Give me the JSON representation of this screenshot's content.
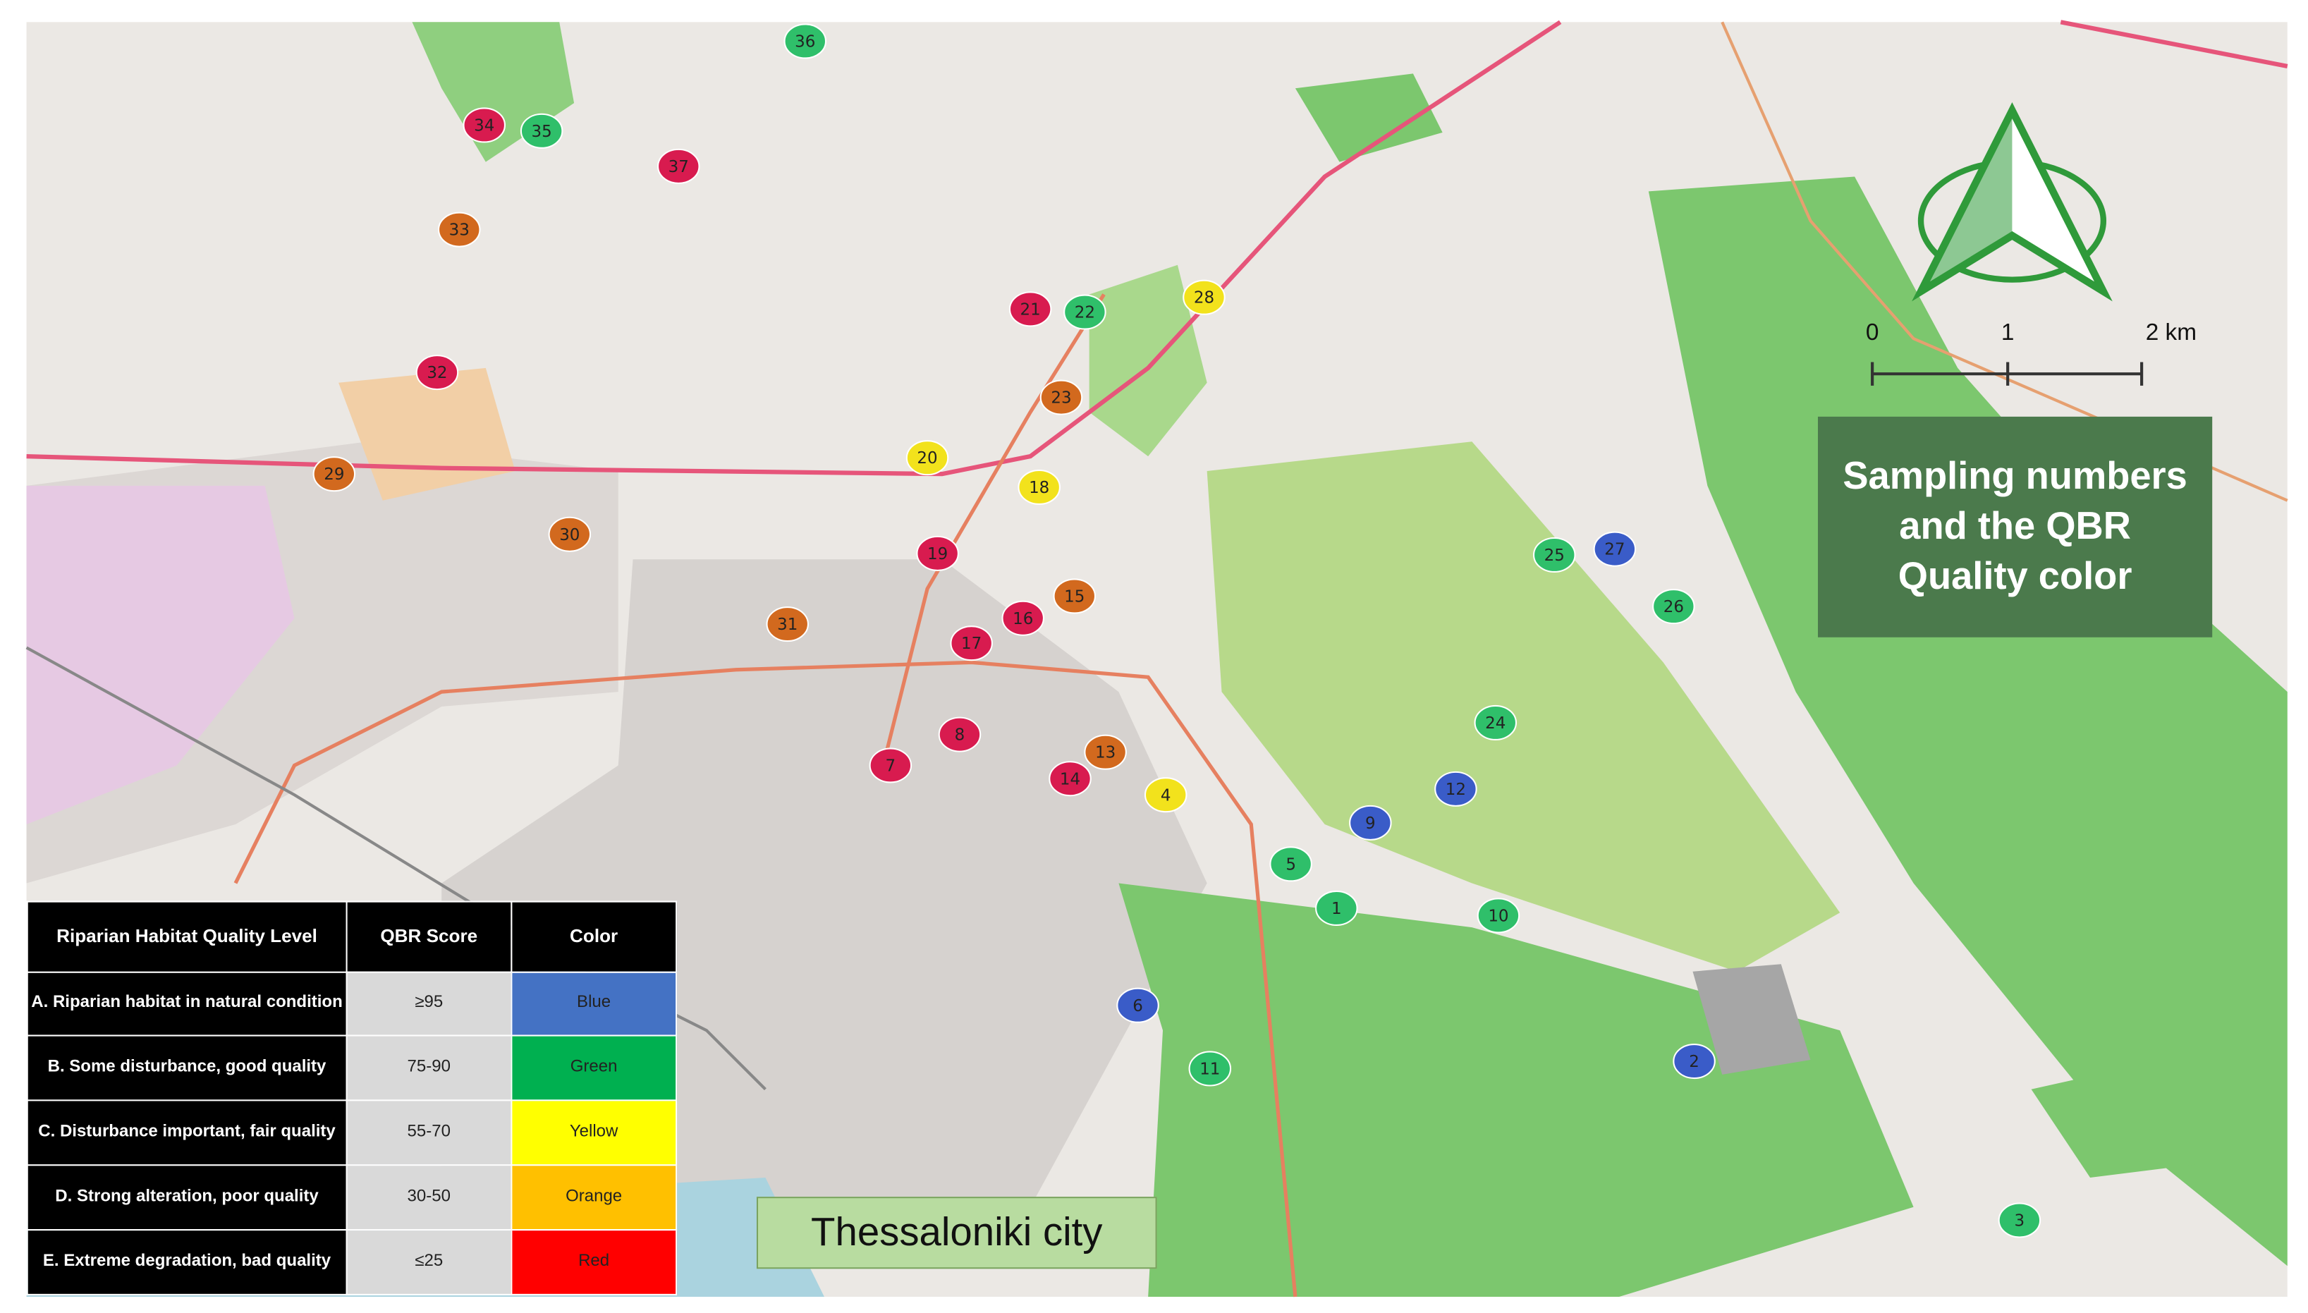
{
  "map": {
    "title": "Sampling numbers and the QBR Quality color",
    "place_label": "Thessaloniki city",
    "scale_bar": [
      "0",
      "1",
      "2 km"
    ],
    "sites": [
      {
        "label": "36",
        "color": "#2fbf6a"
      },
      {
        "label": "34",
        "color": "#d81b4f"
      },
      {
        "label": "35",
        "color": "#2fbf6a"
      },
      {
        "label": "37",
        "color": "#d81b4f"
      },
      {
        "label": "33",
        "color": "#d2691e"
      },
      {
        "label": "21",
        "color": "#d81b4f"
      },
      {
        "label": "22",
        "color": "#2fbf6a"
      },
      {
        "label": "28",
        "color": "#f2e21c"
      },
      {
        "label": "32",
        "color": "#d81b4f"
      },
      {
        "label": "23",
        "color": "#d2691e"
      },
      {
        "label": "29",
        "color": "#d2691e"
      },
      {
        "label": "20",
        "color": "#f2e21c"
      },
      {
        "label": "18",
        "color": "#f2e21c"
      },
      {
        "label": "30",
        "color": "#d2691e"
      },
      {
        "label": "19",
        "color": "#d81b4f"
      },
      {
        "label": "25",
        "color": "#2fbf6a"
      },
      {
        "label": "27",
        "color": "#3a5cc8"
      },
      {
        "label": "26",
        "color": "#2fbf6a"
      },
      {
        "label": "15",
        "color": "#d2691e"
      },
      {
        "label": "16",
        "color": "#d81b4f"
      },
      {
        "label": "31",
        "color": "#d2691e"
      },
      {
        "label": "17",
        "color": "#d81b4f"
      },
      {
        "label": "24",
        "color": "#2fbf6a"
      },
      {
        "label": "8",
        "color": "#d81b4f"
      },
      {
        "label": "13",
        "color": "#d2691e"
      },
      {
        "label": "14",
        "color": "#d81b4f"
      },
      {
        "label": "7",
        "color": "#d81b4f"
      },
      {
        "label": "4",
        "color": "#f2e21c"
      },
      {
        "label": "12",
        "color": "#3a5cc8"
      },
      {
        "label": "9",
        "color": "#3a5cc8"
      },
      {
        "label": "5",
        "color": "#2fbf6a"
      },
      {
        "label": "1",
        "color": "#2fbf6a"
      },
      {
        "label": "10",
        "color": "#2fbf6a"
      },
      {
        "label": "6",
        "color": "#3a5cc8"
      },
      {
        "label": "11",
        "color": "#2fbf6a"
      },
      {
        "label": "2",
        "color": "#3a5cc8"
      },
      {
        "label": "3",
        "color": "#2fbf6a"
      }
    ],
    "legend": {
      "headers": [
        "Riparian Habitat Quality Level",
        "QBR Score",
        "Color"
      ],
      "rows": [
        {
          "level": "A. Riparian habitat in natural condition",
          "score": "≥95",
          "color_name": "Blue",
          "fill": "#4472c4"
        },
        {
          "level": "B. Some disturbance, good quality",
          "score": "75-90",
          "color_name": "Green",
          "fill": "#00b050"
        },
        {
          "level": "C. Disturbance important, fair quality",
          "score": "55-70",
          "color_name": "Yellow",
          "fill": "#ffff00"
        },
        {
          "level": "D. Strong alteration, poor quality",
          "score": "30-50",
          "color_name": "Orange",
          "fill": "#ffc000"
        },
        {
          "level": "E. Extreme degradation, bad quality",
          "score": "≤25",
          "color_name": "Red",
          "fill": "#ff0000"
        }
      ]
    }
  }
}
